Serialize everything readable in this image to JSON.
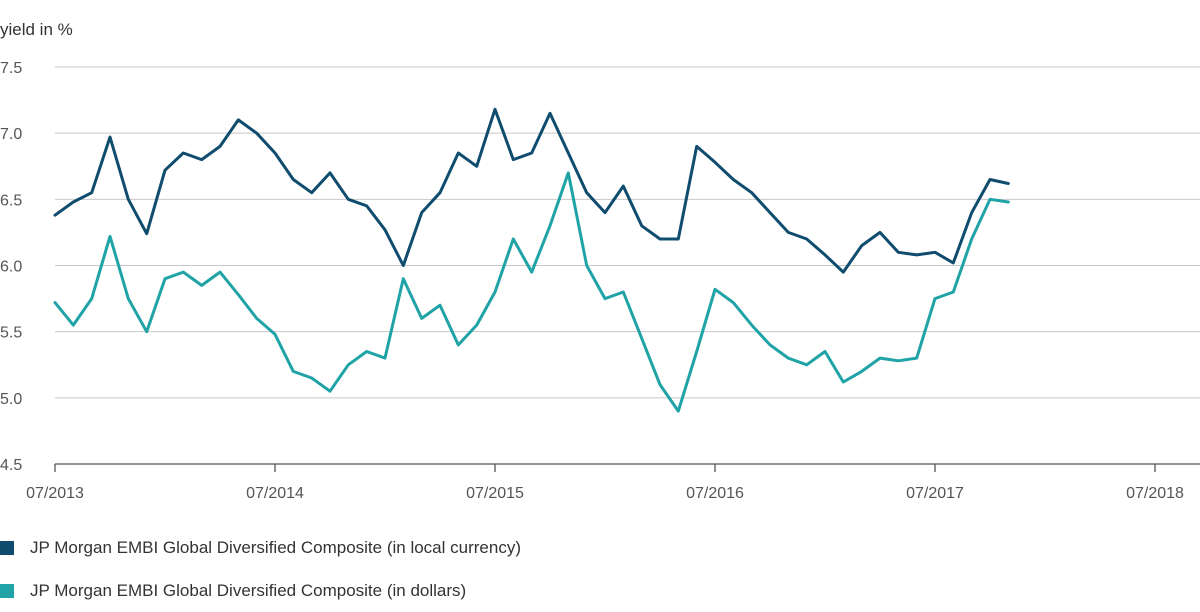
{
  "chart_data": {
    "type": "line",
    "ylabel": "yield in %",
    "ylim": [
      4.5,
      7.5
    ],
    "yticks": [
      "7.5",
      "7.0",
      "6.5",
      "6.0",
      "5.5",
      "5.0",
      "4.5"
    ],
    "xlim": [
      "2013-07",
      "2018-07"
    ],
    "xticks": [
      "07/2013",
      "07/2014",
      "07/2015",
      "07/2016",
      "07/2017",
      "07/2018"
    ],
    "grid": "horizontal",
    "legend_position": "bottom-left",
    "series": [
      {
        "name": "JP Morgan EMBI Global Diversified Composite (in local currency)",
        "color": "#0f4c6e",
        "points": [
          [
            "2013-07",
            6.38
          ],
          [
            "2013-08",
            6.48
          ],
          [
            "2013-09",
            6.55
          ],
          [
            "2013-10",
            6.97
          ],
          [
            "2013-11",
            6.5
          ],
          [
            "2013-12",
            6.24
          ],
          [
            "2014-01",
            6.72
          ],
          [
            "2014-02",
            6.85
          ],
          [
            "2014-03",
            6.8
          ],
          [
            "2014-04",
            6.9
          ],
          [
            "2014-05",
            7.1
          ],
          [
            "2014-06",
            7.0
          ],
          [
            "2014-07",
            6.85
          ],
          [
            "2014-08",
            6.65
          ],
          [
            "2014-09",
            6.55
          ],
          [
            "2014-10",
            6.7
          ],
          [
            "2014-11",
            6.5
          ],
          [
            "2014-12",
            6.45
          ],
          [
            "2015-01",
            6.27
          ],
          [
            "2015-02",
            6.0
          ],
          [
            "2015-03",
            6.4
          ],
          [
            "2015-04",
            6.55
          ],
          [
            "2015-05",
            6.85
          ],
          [
            "2015-06",
            6.75
          ],
          [
            "2015-07",
            7.18
          ],
          [
            "2015-08",
            6.8
          ],
          [
            "2015-09",
            6.85
          ],
          [
            "2015-10",
            7.15
          ],
          [
            "2015-11",
            6.85
          ],
          [
            "2015-12",
            6.55
          ],
          [
            "2016-01",
            6.4
          ],
          [
            "2016-02",
            6.6
          ],
          [
            "2016-03",
            6.3
          ],
          [
            "2016-04",
            6.2
          ],
          [
            "2016-05",
            6.2
          ],
          [
            "2016-06",
            6.9
          ],
          [
            "2016-07",
            6.78
          ],
          [
            "2016-08",
            6.65
          ],
          [
            "2016-09",
            6.55
          ],
          [
            "2016-10",
            6.4
          ],
          [
            "2016-11",
            6.25
          ],
          [
            "2016-12",
            6.2
          ],
          [
            "2017-01",
            6.08
          ],
          [
            "2017-02",
            5.95
          ],
          [
            "2017-03",
            6.15
          ],
          [
            "2017-04",
            6.25
          ],
          [
            "2017-05",
            6.1
          ],
          [
            "2017-06",
            6.08
          ],
          [
            "2017-07",
            6.1
          ],
          [
            "2017-08",
            6.02
          ],
          [
            "2017-09",
            6.4
          ],
          [
            "2017-10",
            6.65
          ],
          [
            "2017-11",
            6.62
          ]
        ]
      },
      {
        "name": "JP Morgan EMBI Global Diversified Composite (in dollars)",
        "color": "#1fa3a6",
        "points": [
          [
            "2013-07",
            5.72
          ],
          [
            "2013-08",
            5.55
          ],
          [
            "2013-09",
            5.75
          ],
          [
            "2013-10",
            6.22
          ],
          [
            "2013-11",
            5.75
          ],
          [
            "2013-12",
            5.5
          ],
          [
            "2014-01",
            5.9
          ],
          [
            "2014-02",
            5.95
          ],
          [
            "2014-03",
            5.85
          ],
          [
            "2014-04",
            5.95
          ],
          [
            "2014-05",
            5.78
          ],
          [
            "2014-06",
            5.6
          ],
          [
            "2014-07",
            5.48
          ],
          [
            "2014-08",
            5.2
          ],
          [
            "2014-09",
            5.15
          ],
          [
            "2014-10",
            5.05
          ],
          [
            "2014-11",
            5.25
          ],
          [
            "2014-12",
            5.35
          ],
          [
            "2015-01",
            5.3
          ],
          [
            "2015-02",
            5.9
          ],
          [
            "2015-03",
            5.6
          ],
          [
            "2015-04",
            5.7
          ],
          [
            "2015-05",
            5.4
          ],
          [
            "2015-06",
            5.55
          ],
          [
            "2015-07",
            5.8
          ],
          [
            "2015-08",
            6.2
          ],
          [
            "2015-09",
            5.95
          ],
          [
            "2015-10",
            6.3
          ],
          [
            "2015-11",
            6.7
          ],
          [
            "2015-12",
            6.0
          ],
          [
            "2016-01",
            5.75
          ],
          [
            "2016-02",
            5.8
          ],
          [
            "2016-03",
            5.45
          ],
          [
            "2016-04",
            5.1
          ],
          [
            "2016-05",
            4.9
          ],
          [
            "2016-06",
            5.35
          ],
          [
            "2016-07",
            5.82
          ],
          [
            "2016-08",
            5.72
          ],
          [
            "2016-09",
            5.55
          ],
          [
            "2016-10",
            5.4
          ],
          [
            "2016-11",
            5.3
          ],
          [
            "2016-12",
            5.25
          ],
          [
            "2017-01",
            5.35
          ],
          [
            "2017-02",
            5.12
          ],
          [
            "2017-03",
            5.2
          ],
          [
            "2017-04",
            5.3
          ],
          [
            "2017-05",
            5.28
          ],
          [
            "2017-06",
            5.3
          ],
          [
            "2017-07",
            5.75
          ],
          [
            "2017-08",
            5.8
          ],
          [
            "2017-09",
            6.2
          ],
          [
            "2017-10",
            6.5
          ],
          [
            "2017-11",
            6.48
          ]
        ]
      }
    ]
  }
}
